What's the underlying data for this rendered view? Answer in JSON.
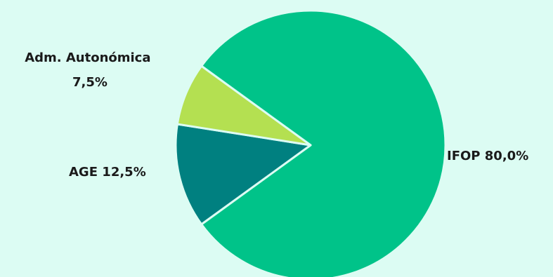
{
  "chart_data": {
    "type": "pie",
    "title": "",
    "legend": "none",
    "slices": [
      {
        "label": "IFOP",
        "value_text": "80,0%",
        "value": 80.0,
        "color": "#00c389"
      },
      {
        "label": "AGE",
        "value_text": "12,5%",
        "value": 12.5,
        "color": "#008080"
      },
      {
        "label": "Adm. Autonómica",
        "value_text": "7,5%",
        "value": 7.5,
        "color": "#b4e051"
      }
    ]
  }
}
